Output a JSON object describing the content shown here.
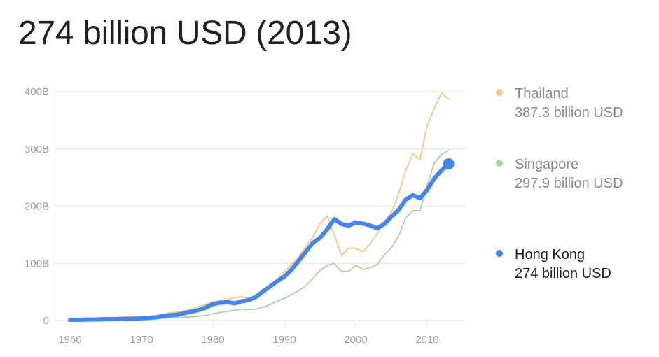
{
  "title": "274 billion USD (2013)",
  "legend": [
    {
      "name": "Thailand",
      "value": "387.3 billion USD",
      "color": "#f9c587",
      "active": false
    },
    {
      "name": "Singapore",
      "value": "297.9 billion USD",
      "color": "#a8d69a",
      "active": false
    },
    {
      "name": "Hong Kong",
      "value": "274 billion USD",
      "color": "#4285f4",
      "active": true
    }
  ],
  "axes": {
    "y_ticks": [
      "0",
      "100B",
      "200B",
      "300B",
      "400B"
    ],
    "x_ticks": [
      "1960",
      "1970",
      "1980",
      "1990",
      "2000",
      "2010"
    ]
  },
  "chart_data": {
    "type": "line",
    "title": "274 billion USD (2013)",
    "xlabel": "",
    "ylabel": "",
    "x": [
      1960,
      1961,
      1962,
      1963,
      1964,
      1965,
      1966,
      1967,
      1968,
      1969,
      1970,
      1971,
      1972,
      1973,
      1974,
      1975,
      1976,
      1977,
      1978,
      1979,
      1980,
      1981,
      1982,
      1983,
      1984,
      1985,
      1986,
      1987,
      1988,
      1989,
      1990,
      1991,
      1992,
      1993,
      1994,
      1995,
      1996,
      1997,
      1998,
      1999,
      2000,
      2001,
      2002,
      2003,
      2004,
      2005,
      2006,
      2007,
      2008,
      2009,
      2010,
      2011,
      2012,
      2013
    ],
    "ylim": [
      0,
      400
    ],
    "yunit": "billion USD",
    "grid": true,
    "legend_position": "right",
    "series": [
      {
        "name": "Thailand",
        "color": "#f9c587",
        "values": [
          2.8,
          3.0,
          3.3,
          3.6,
          4.0,
          4.4,
          5.2,
          5.7,
          6.1,
          6.7,
          7.1,
          7.4,
          8.2,
          10.8,
          13.7,
          14.9,
          16.9,
          19.8,
          24.1,
          27.8,
          32.4,
          34.8,
          36.6,
          40.0,
          41.8,
          38.9,
          43.1,
          50.5,
          61.7,
          72.3,
          85.3,
          98.2,
          111.5,
          128.9,
          146.7,
          169.3,
          183.0,
          150.2,
          113.7,
          126.7,
          126.4,
          120.3,
          134.3,
          152.3,
          172.9,
          189.3,
          221.8,
          262.9,
          291.4,
          281.7,
          341.1,
          370.8,
          397.6,
          387.3
        ]
      },
      {
        "name": "Singapore",
        "color": "#a8d69a",
        "values": [
          0.7,
          0.8,
          0.9,
          0.9,
          0.9,
          1.0,
          1.1,
          1.2,
          1.4,
          1.6,
          1.9,
          2.3,
          2.7,
          3.7,
          4.9,
          5.5,
          5.8,
          6.4,
          7.5,
          9.2,
          11.9,
          14.2,
          16.1,
          17.8,
          19.9,
          19.2,
          19.9,
          23.1,
          28.1,
          33.5,
          39.0,
          45.5,
          52.1,
          60.6,
          73.7,
          87.9,
          96.3,
          100.1,
          85.7,
          86.3,
          96.1,
          89.3,
          92.5,
          97.6,
          115.0,
          127.4,
          147.8,
          180.0,
          192.2,
          192.4,
          236.4,
          275.4,
          290.7,
          297.9
        ]
      },
      {
        "name": "Hong Kong",
        "color": "#4285f4",
        "values": [
          1.3,
          1.4,
          1.6,
          1.8,
          2.0,
          2.4,
          2.5,
          2.7,
          2.7,
          3.0,
          3.8,
          4.5,
          5.6,
          7.9,
          9.2,
          10.0,
          12.7,
          15.5,
          18.3,
          22.5,
          28.9,
          31.0,
          32.3,
          29.9,
          33.5,
          35.7,
          41.1,
          50.6,
          59.7,
          68.8,
          76.9,
          88.9,
          104.3,
          120.4,
          135.8,
          144.7,
          159.8,
          177.4,
          168.9,
          165.9,
          171.7,
          169.4,
          166.3,
          161.4,
          169.1,
          181.6,
          193.5,
          211.6,
          219.3,
          214.0,
          228.6,
          248.5,
          262.6,
          274.0
        ]
      }
    ]
  }
}
